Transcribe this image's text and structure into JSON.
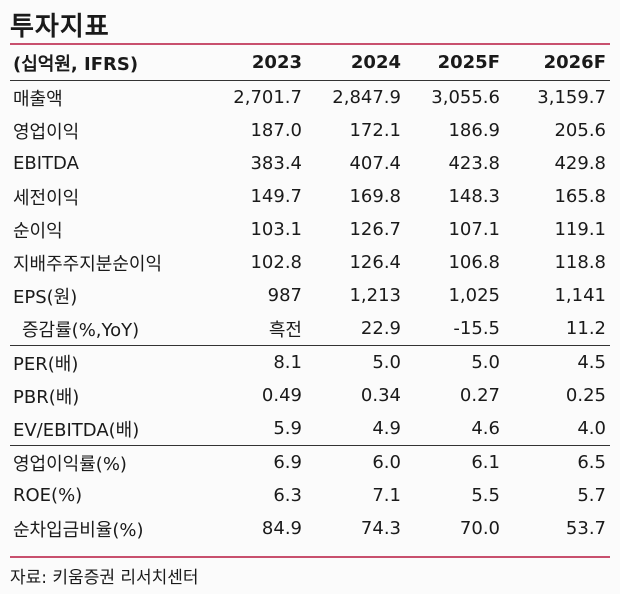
{
  "title": "투자지표",
  "header": {
    "unit": "(십억원, IFRS)",
    "years": [
      "2023",
      "2024",
      "2025F",
      "2026F"
    ]
  },
  "rows": [
    {
      "label": "매출액",
      "values": [
        "2,701.7",
        "2,847.9",
        "3,055.6",
        "3,159.7"
      ]
    },
    {
      "label": "영업이익",
      "values": [
        "187.0",
        "172.1",
        "186.9",
        "205.6"
      ]
    },
    {
      "label": "EBITDA",
      "values": [
        "383.4",
        "407.4",
        "423.8",
        "429.8"
      ]
    },
    {
      "label": "세전이익",
      "values": [
        "149.7",
        "169.8",
        "148.3",
        "165.8"
      ]
    },
    {
      "label": "순이익",
      "values": [
        "103.1",
        "126.7",
        "107.1",
        "119.1"
      ]
    },
    {
      "label": "지배주주지분순이익",
      "values": [
        "102.8",
        "126.4",
        "106.8",
        "118.8"
      ]
    },
    {
      "label": "EPS(원)",
      "values": [
        "987",
        "1,213",
        "1,025",
        "1,141"
      ]
    },
    {
      "label": "증감률(%,YoY)",
      "values": [
        "흑전",
        "22.9",
        "-15.5",
        "11.2"
      ]
    },
    {
      "label": "PER(배)",
      "values": [
        "8.1",
        "5.0",
        "5.0",
        "4.5"
      ]
    },
    {
      "label": "PBR(배)",
      "values": [
        "0.49",
        "0.34",
        "0.27",
        "0.25"
      ]
    },
    {
      "label": "EV/EBITDA(배)",
      "values": [
        "5.9",
        "4.9",
        "4.6",
        "4.0"
      ]
    },
    {
      "label": "영업이익률(%)",
      "values": [
        "6.9",
        "6.0",
        "6.1",
        "6.5"
      ]
    },
    {
      "label": "ROE(%)",
      "values": [
        "6.3",
        "7.1",
        "5.5",
        "5.7"
      ]
    },
    {
      "label": "순차입금비율(%)",
      "values": [
        "84.9",
        "74.3",
        "70.0",
        "53.7"
      ]
    }
  ],
  "source": "자료: 키움증권 리서치센터",
  "colors": {
    "accent_rule": "#c8506e",
    "text": "#1a1a1a",
    "background": "#fbfbfb"
  }
}
